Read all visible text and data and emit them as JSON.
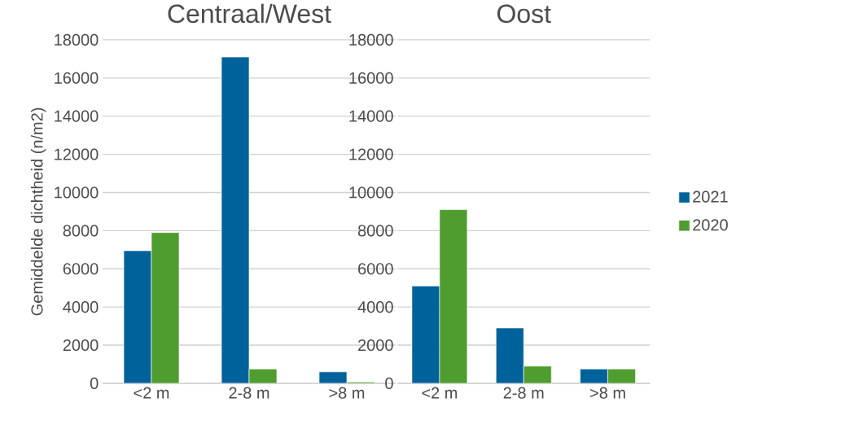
{
  "chart_data": [
    {
      "type": "bar",
      "title": "Centraal/West",
      "ylabel": "Gemiddelde dichtheid (n/m2)",
      "categories": [
        "<2 m",
        "2-8 m",
        ">8 m"
      ],
      "series": [
        {
          "color": "#00629b",
          "values": [
            6950,
            17100,
            600
          ]
        },
        {
          "color": "#4f9c2f",
          "values": [
            7900,
            750,
            70
          ]
        }
      ],
      "ylim": [
        0,
        18000
      ],
      "yticks": [
        0,
        2000,
        4000,
        6000,
        8000,
        10000,
        12000,
        14000,
        16000,
        18000
      ],
      "grid": "y",
      "legend": false
    },
    {
      "type": "bar",
      "title": "Oost",
      "categories": [
        "<2 m",
        "2-8 m",
        ">8 m"
      ],
      "series": [
        {
          "name": "2021",
          "color": "#00629b",
          "values": [
            5100,
            2900,
            750
          ]
        },
        {
          "name": "2020",
          "color": "#4f9c2f",
          "values": [
            9100,
            900,
            750
          ]
        }
      ],
      "ylim": [
        0,
        18000
      ],
      "yticks": [
        0,
        2000,
        4000,
        6000,
        8000,
        10000,
        12000,
        14000,
        16000,
        18000
      ],
      "grid": "y",
      "legend": "right"
    }
  ]
}
